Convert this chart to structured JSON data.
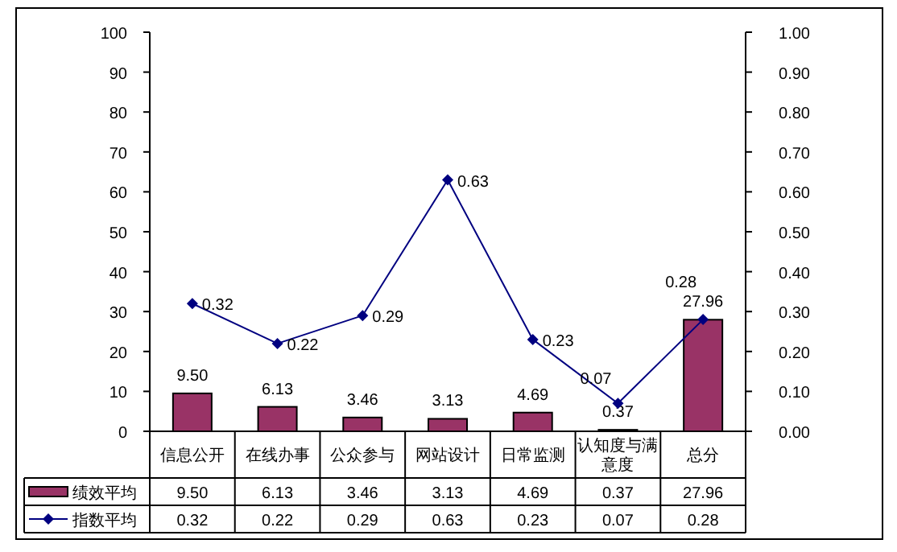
{
  "chart_data": {
    "type": "bar",
    "categories": [
      "信息公开",
      "在线办事",
      "公众参与",
      "网站设计",
      "日常监测",
      "认知度与满意度",
      "总分"
    ],
    "series": [
      {
        "name": "绩效平均",
        "color": "#993366",
        "values": [
          9.5,
          6.13,
          3.46,
          3.13,
          4.69,
          0.37,
          27.96
        ],
        "value_labels": [
          "9.50",
          "6.13",
          "3.46",
          "3.13",
          "4.69",
          "0.37",
          "27.96"
        ]
      },
      {
        "name": "指数平均",
        "type": "line",
        "axis": "y2",
        "color": "#000080",
        "marker": "diamond",
        "values": [
          0.32,
          0.22,
          0.29,
          0.63,
          0.23,
          0.07,
          0.28
        ],
        "value_labels": [
          "0.32",
          "0.22",
          "0.29",
          "0.63",
          "0.23",
          "0.07",
          "0.28"
        ]
      }
    ],
    "ylim": [
      0,
      100
    ],
    "yticks": [
      0,
      10,
      20,
      30,
      40,
      50,
      60,
      70,
      80,
      90,
      100
    ],
    "y2lim": [
      0,
      1
    ],
    "y2ticks": [
      {
        "value": 0,
        "label": "0.00"
      },
      {
        "value": 0.1,
        "label": "0.10"
      },
      {
        "value": 0.2,
        "label": "0.20"
      },
      {
        "value": 0.3,
        "label": "0.30"
      },
      {
        "value": 0.4,
        "label": "0.40"
      },
      {
        "value": 0.5,
        "label": "0.50"
      },
      {
        "value": 0.6,
        "label": "0.60"
      },
      {
        "value": 0.7,
        "label": "0.70"
      },
      {
        "value": 0.8,
        "label": "0.80"
      },
      {
        "value": 0.9,
        "label": "0.90"
      },
      {
        "value": 1,
        "label": "1.00"
      }
    ],
    "legend": "bottom",
    "grid": false
  }
}
